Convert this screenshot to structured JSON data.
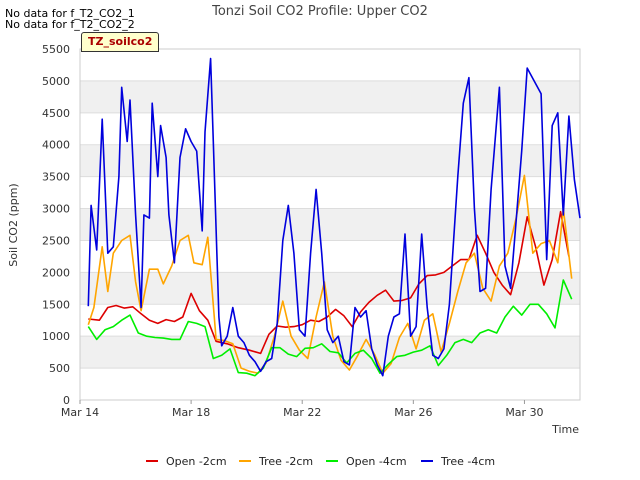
{
  "notes": [
    "No data for f_T2_CO2_1",
    "No data for f_T2_CO2_2"
  ],
  "tag_label": "TZ_soilco2",
  "chart_data": {
    "type": "line",
    "title": "Tonzi Soil CO2 Profile: Upper CO2",
    "xlabel": "Time",
    "ylabel": "Soil CO2 (ppm)",
    "xlim": [
      0,
      18
    ],
    "ylim": [
      0,
      5500
    ],
    "y_ticks": [
      0,
      500,
      1000,
      1500,
      2000,
      2500,
      3000,
      3500,
      4000,
      4500,
      5000,
      5500
    ],
    "x_ticks": [
      {
        "value": 0,
        "label": "Mar 14"
      },
      {
        "value": 4,
        "label": "Mar 18"
      },
      {
        "value": 8,
        "label": "Mar 22"
      },
      {
        "value": 12,
        "label": "Mar 26"
      },
      {
        "value": 16,
        "label": "Mar 30"
      }
    ],
    "series": [
      {
        "name": "Open -2cm",
        "color": "#dd0000",
        "points": [
          [
            0.3,
            1270
          ],
          [
            0.7,
            1250
          ],
          [
            1.0,
            1450
          ],
          [
            1.3,
            1480
          ],
          [
            1.6,
            1440
          ],
          [
            1.9,
            1460
          ],
          [
            2.2,
            1350
          ],
          [
            2.5,
            1250
          ],
          [
            2.8,
            1200
          ],
          [
            3.1,
            1260
          ],
          [
            3.4,
            1230
          ],
          [
            3.7,
            1300
          ],
          [
            4.0,
            1670
          ],
          [
            4.3,
            1400
          ],
          [
            4.6,
            1250
          ],
          [
            4.9,
            920
          ],
          [
            5.3,
            880
          ],
          [
            5.7,
            820
          ],
          [
            6.1,
            780
          ],
          [
            6.5,
            730
          ],
          [
            6.8,
            1030
          ],
          [
            7.1,
            1160
          ],
          [
            7.4,
            1140
          ],
          [
            7.7,
            1150
          ],
          [
            8.0,
            1180
          ],
          [
            8.3,
            1250
          ],
          [
            8.6,
            1230
          ],
          [
            8.9,
            1300
          ],
          [
            9.2,
            1420
          ],
          [
            9.5,
            1320
          ],
          [
            9.8,
            1150
          ],
          [
            10.1,
            1380
          ],
          [
            10.4,
            1530
          ],
          [
            10.7,
            1640
          ],
          [
            11.0,
            1720
          ],
          [
            11.3,
            1550
          ],
          [
            11.6,
            1560
          ],
          [
            11.9,
            1600
          ],
          [
            12.2,
            1820
          ],
          [
            12.5,
            1950
          ],
          [
            12.8,
            1960
          ],
          [
            13.1,
            2000
          ],
          [
            13.4,
            2100
          ],
          [
            13.7,
            2200
          ],
          [
            14.0,
            2200
          ],
          [
            14.3,
            2580
          ],
          [
            14.6,
            2300
          ],
          [
            14.9,
            2000
          ],
          [
            15.2,
            1800
          ],
          [
            15.5,
            1650
          ],
          [
            15.8,
            2150
          ],
          [
            16.1,
            2870
          ],
          [
            16.4,
            2400
          ],
          [
            16.7,
            1800
          ],
          [
            17.0,
            2200
          ],
          [
            17.3,
            2950
          ],
          [
            17.6,
            2250
          ]
        ]
      },
      {
        "name": "Tree -2cm",
        "color": "#ffa500",
        "points": [
          [
            0.3,
            1180
          ],
          [
            0.5,
            1450
          ],
          [
            0.8,
            2400
          ],
          [
            1.0,
            1700
          ],
          [
            1.2,
            2300
          ],
          [
            1.5,
            2500
          ],
          [
            1.8,
            2580
          ],
          [
            2.0,
            1850
          ],
          [
            2.2,
            1400
          ],
          [
            2.5,
            2050
          ],
          [
            2.8,
            2050
          ],
          [
            3.0,
            1820
          ],
          [
            3.3,
            2100
          ],
          [
            3.6,
            2500
          ],
          [
            3.9,
            2580
          ],
          [
            4.1,
            2150
          ],
          [
            4.4,
            2120
          ],
          [
            4.6,
            2550
          ],
          [
            4.9,
            950
          ],
          [
            5.2,
            930
          ],
          [
            5.5,
            880
          ],
          [
            5.8,
            500
          ],
          [
            6.1,
            450
          ],
          [
            6.4,
            420
          ],
          [
            6.7,
            580
          ],
          [
            7.0,
            1000
          ],
          [
            7.3,
            1550
          ],
          [
            7.6,
            1000
          ],
          [
            7.9,
            780
          ],
          [
            8.2,
            650
          ],
          [
            8.5,
            1300
          ],
          [
            8.8,
            1850
          ],
          [
            9.1,
            1000
          ],
          [
            9.4,
            620
          ],
          [
            9.7,
            470
          ],
          [
            10.0,
            700
          ],
          [
            10.3,
            950
          ],
          [
            10.6,
            720
          ],
          [
            10.9,
            420
          ],
          [
            11.2,
            570
          ],
          [
            11.5,
            980
          ],
          [
            11.8,
            1200
          ],
          [
            12.1,
            800
          ],
          [
            12.4,
            1250
          ],
          [
            12.7,
            1350
          ],
          [
            13.0,
            750
          ],
          [
            13.3,
            1200
          ],
          [
            13.6,
            1700
          ],
          [
            13.9,
            2150
          ],
          [
            14.2,
            2300
          ],
          [
            14.5,
            1750
          ],
          [
            14.8,
            1550
          ],
          [
            15.1,
            2100
          ],
          [
            15.4,
            2300
          ],
          [
            15.7,
            2850
          ],
          [
            16.0,
            3520
          ],
          [
            16.3,
            2300
          ],
          [
            16.6,
            2450
          ],
          [
            16.9,
            2500
          ],
          [
            17.2,
            2150
          ],
          [
            17.4,
            3000
          ],
          [
            17.7,
            1900
          ]
        ]
      },
      {
        "name": "Open -4cm",
        "color": "#00ee00",
        "points": [
          [
            0.3,
            1150
          ],
          [
            0.6,
            950
          ],
          [
            0.9,
            1100
          ],
          [
            1.2,
            1150
          ],
          [
            1.5,
            1250
          ],
          [
            1.8,
            1330
          ],
          [
            2.1,
            1050
          ],
          [
            2.4,
            1000
          ],
          [
            2.7,
            980
          ],
          [
            3.0,
            970
          ],
          [
            3.3,
            950
          ],
          [
            3.6,
            950
          ],
          [
            3.9,
            1230
          ],
          [
            4.2,
            1200
          ],
          [
            4.5,
            1150
          ],
          [
            4.8,
            650
          ],
          [
            5.1,
            700
          ],
          [
            5.4,
            800
          ],
          [
            5.7,
            430
          ],
          [
            6.0,
            420
          ],
          [
            6.3,
            380
          ],
          [
            6.6,
            500
          ],
          [
            6.9,
            820
          ],
          [
            7.2,
            820
          ],
          [
            7.5,
            720
          ],
          [
            7.8,
            680
          ],
          [
            8.1,
            810
          ],
          [
            8.4,
            820
          ],
          [
            8.7,
            880
          ],
          [
            9.0,
            760
          ],
          [
            9.3,
            740
          ],
          [
            9.6,
            580
          ],
          [
            9.9,
            730
          ],
          [
            10.2,
            780
          ],
          [
            10.5,
            650
          ],
          [
            10.8,
            420
          ],
          [
            11.1,
            560
          ],
          [
            11.4,
            680
          ],
          [
            11.7,
            700
          ],
          [
            12.0,
            750
          ],
          [
            12.3,
            780
          ],
          [
            12.6,
            850
          ],
          [
            12.9,
            540
          ],
          [
            13.2,
            700
          ],
          [
            13.5,
            900
          ],
          [
            13.8,
            950
          ],
          [
            14.1,
            900
          ],
          [
            14.4,
            1050
          ],
          [
            14.7,
            1100
          ],
          [
            15.0,
            1050
          ],
          [
            15.3,
            1300
          ],
          [
            15.6,
            1470
          ],
          [
            15.9,
            1330
          ],
          [
            16.2,
            1500
          ],
          [
            16.5,
            1500
          ],
          [
            16.8,
            1350
          ],
          [
            17.1,
            1130
          ],
          [
            17.4,
            1880
          ],
          [
            17.7,
            1580
          ]
        ]
      },
      {
        "name": "Tree -4cm",
        "color": "#0000dd",
        "points": [
          [
            0.3,
            1470
          ],
          [
            0.4,
            3050
          ],
          [
            0.6,
            2350
          ],
          [
            0.8,
            4400
          ],
          [
            1.0,
            2300
          ],
          [
            1.2,
            2400
          ],
          [
            1.4,
            3500
          ],
          [
            1.5,
            4900
          ],
          [
            1.7,
            4050
          ],
          [
            1.8,
            4700
          ],
          [
            2.0,
            2900
          ],
          [
            2.2,
            1450
          ],
          [
            2.3,
            2900
          ],
          [
            2.5,
            2850
          ],
          [
            2.6,
            4650
          ],
          [
            2.8,
            3500
          ],
          [
            2.9,
            4300
          ],
          [
            3.1,
            3800
          ],
          [
            3.2,
            2900
          ],
          [
            3.4,
            2150
          ],
          [
            3.6,
            3800
          ],
          [
            3.8,
            4250
          ],
          [
            4.0,
            4050
          ],
          [
            4.2,
            3900
          ],
          [
            4.4,
            2650
          ],
          [
            4.5,
            4200
          ],
          [
            4.7,
            5350
          ],
          [
            4.8,
            4050
          ],
          [
            5.0,
            1300
          ],
          [
            5.1,
            850
          ],
          [
            5.3,
            1000
          ],
          [
            5.5,
            1450
          ],
          [
            5.7,
            1000
          ],
          [
            5.9,
            900
          ],
          [
            6.1,
            700
          ],
          [
            6.3,
            600
          ],
          [
            6.5,
            450
          ],
          [
            6.7,
            600
          ],
          [
            6.9,
            650
          ],
          [
            7.1,
            1200
          ],
          [
            7.3,
            2500
          ],
          [
            7.5,
            3050
          ],
          [
            7.7,
            2300
          ],
          [
            7.9,
            1100
          ],
          [
            8.1,
            1000
          ],
          [
            8.3,
            2300
          ],
          [
            8.5,
            3300
          ],
          [
            8.7,
            2300
          ],
          [
            8.9,
            1100
          ],
          [
            9.1,
            900
          ],
          [
            9.3,
            1000
          ],
          [
            9.5,
            600
          ],
          [
            9.7,
            550
          ],
          [
            9.9,
            1450
          ],
          [
            10.1,
            1300
          ],
          [
            10.3,
            1400
          ],
          [
            10.5,
            800
          ],
          [
            10.7,
            550
          ],
          [
            10.9,
            380
          ],
          [
            11.1,
            1000
          ],
          [
            11.3,
            1300
          ],
          [
            11.5,
            1350
          ],
          [
            11.7,
            2600
          ],
          [
            11.9,
            1000
          ],
          [
            12.1,
            1150
          ],
          [
            12.3,
            2600
          ],
          [
            12.5,
            1450
          ],
          [
            12.7,
            700
          ],
          [
            12.9,
            650
          ],
          [
            13.1,
            800
          ],
          [
            13.3,
            1500
          ],
          [
            13.6,
            3500
          ],
          [
            13.8,
            4650
          ],
          [
            14.0,
            5050
          ],
          [
            14.2,
            3000
          ],
          [
            14.4,
            1700
          ],
          [
            14.6,
            1750
          ],
          [
            14.8,
            3300
          ],
          [
            15.1,
            4900
          ],
          [
            15.3,
            2100
          ],
          [
            15.5,
            1750
          ],
          [
            15.7,
            2800
          ],
          [
            15.9,
            3900
          ],
          [
            16.1,
            5200
          ],
          [
            16.6,
            4800
          ],
          [
            16.8,
            2200
          ],
          [
            17.0,
            4300
          ],
          [
            17.2,
            4500
          ],
          [
            17.4,
            2900
          ],
          [
            17.6,
            4450
          ],
          [
            17.8,
            3450
          ],
          [
            18.0,
            2850
          ]
        ]
      }
    ]
  }
}
